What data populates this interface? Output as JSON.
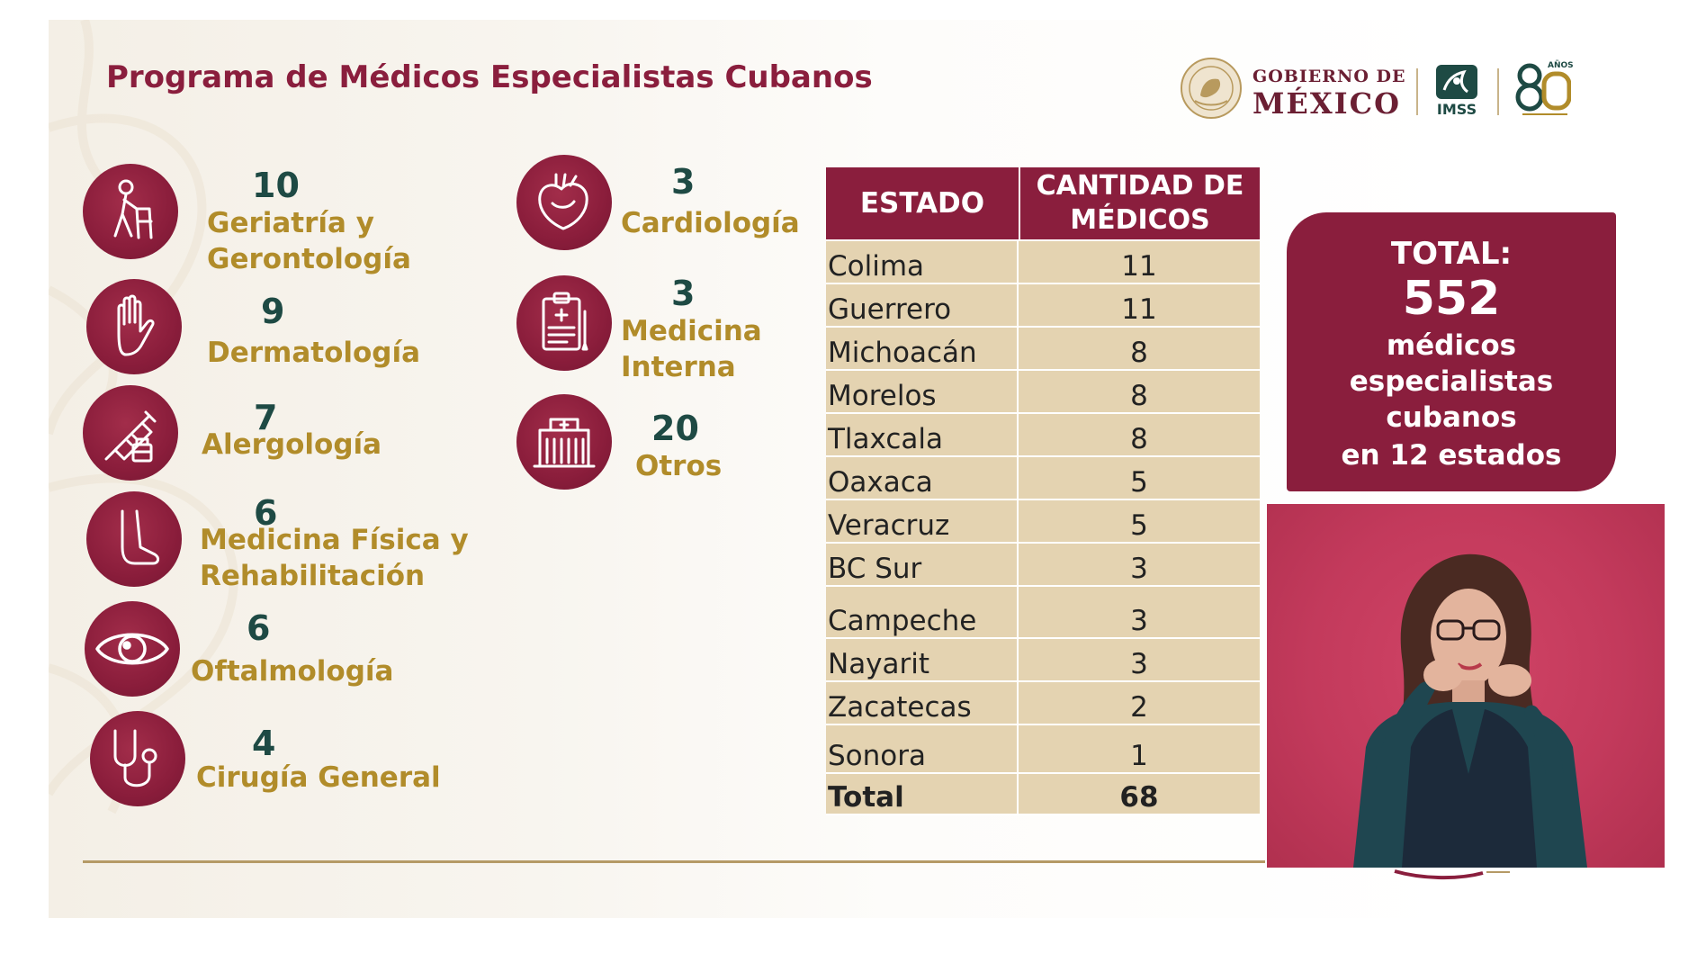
{
  "title": "Programa de Médicos Especialistas Cubanos",
  "header": {
    "gobierno_line1": "GOBIERNO DE",
    "gobierno_line2": "MÉXICO",
    "imss": "IMSS",
    "anos": "AÑOS"
  },
  "specialties": [
    {
      "count": "10",
      "label_1": "Geriatría y",
      "label_2": "Gerontología",
      "icon": "elderly-walker-icon"
    },
    {
      "count": "9",
      "label_1": "Dermatología",
      "icon": "hand-icon"
    },
    {
      "count": "7",
      "label_1": "Alergología",
      "icon": "syringe-icon"
    },
    {
      "count": "6",
      "label_1": "Medicina Física y",
      "label_2": "Rehabilitación",
      "icon": "foot-icon"
    },
    {
      "count": "6",
      "label_1": "Oftalmología",
      "icon": "eye-icon"
    },
    {
      "count": "4",
      "label_1": "Cirugía General",
      "icon": "stethoscope-icon"
    },
    {
      "count": "3",
      "label_1": "Cardiología",
      "icon": "heart-icon"
    },
    {
      "count": "3",
      "label_1": "Medicina",
      "label_2": "Interna",
      "icon": "clipboard-icon"
    },
    {
      "count": "20",
      "label_1": "Otros",
      "icon": "hospital-icon"
    }
  ],
  "table": {
    "header_state": "ESTADO",
    "header_count_1": "CANTIDAD DE",
    "header_count_2": "MÉDICOS",
    "rows": [
      {
        "state": "Colima",
        "count": "11"
      },
      {
        "state": "Guerrero",
        "count": "11"
      },
      {
        "state": "Michoacán",
        "count": "8"
      },
      {
        "state": "Morelos",
        "count": "8"
      },
      {
        "state": "Tlaxcala",
        "count": "8"
      },
      {
        "state": "Oaxaca",
        "count": "5"
      },
      {
        "state": "Veracruz",
        "count": "5"
      },
      {
        "state": "BC Sur",
        "count": "3"
      },
      {
        "state": "Campeche",
        "count": "3"
      },
      {
        "state": "Nayarit",
        "count": "3"
      },
      {
        "state": "Zacatecas",
        "count": "2"
      },
      {
        "state": "Sonora",
        "count": "1"
      }
    ],
    "total_label": "Total",
    "total_count": "68"
  },
  "summary": {
    "label": "TOTAL:",
    "number": "552",
    "line_1": "médicos",
    "line_2": "especialistas",
    "line_3": "cubanos",
    "line_4": "en 12 estados"
  },
  "colors": {
    "accent": "#8a1e3d",
    "gold": "#b18c2a",
    "teal": "#1e4a44",
    "table_cell": "#e4d3b1"
  }
}
